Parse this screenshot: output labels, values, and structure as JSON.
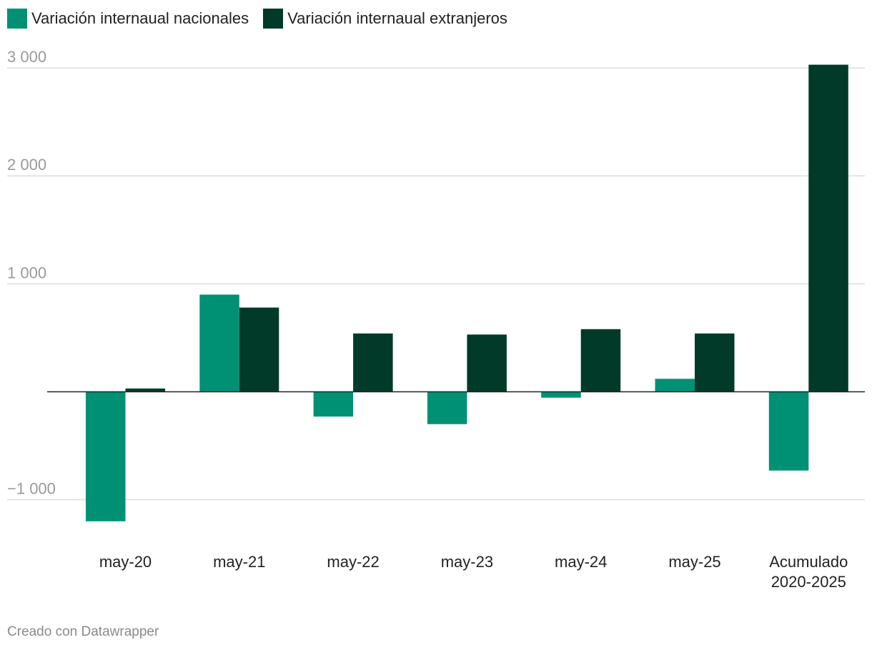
{
  "legend": {
    "items": [
      {
        "label": "Variación internaual nacionales",
        "color": "#009175"
      },
      {
        "label": "Variación internaual extranjeros",
        "color": "#013a29"
      }
    ]
  },
  "footer": {
    "credit": "Creado con Datawrapper"
  },
  "chart_data": {
    "type": "bar",
    "title": "",
    "xlabel": "",
    "ylabel": "",
    "ylim": [
      -1400,
      3100
    ],
    "yticks": [
      -1000,
      1000,
      2000,
      3000
    ],
    "ytick_labels": [
      "−1 000",
      "1 000",
      "2 000",
      "3 000"
    ],
    "grid": true,
    "categories": [
      [
        "may-20"
      ],
      [
        "may-21"
      ],
      [
        "may-22"
      ],
      [
        "may-23"
      ],
      [
        "may-24"
      ],
      [
        "may-25"
      ],
      [
        "Acumulado",
        "2020-2025"
      ]
    ],
    "series": [
      {
        "name": "Variación internaual nacionales",
        "color": "#009175",
        "values": [
          -1200,
          900,
          -230,
          -300,
          -55,
          120,
          -730
        ]
      },
      {
        "name": "Variación internaual extranjeros",
        "color": "#013a29",
        "values": [
          30,
          780,
          540,
          530,
          580,
          540,
          3030
        ]
      }
    ]
  }
}
